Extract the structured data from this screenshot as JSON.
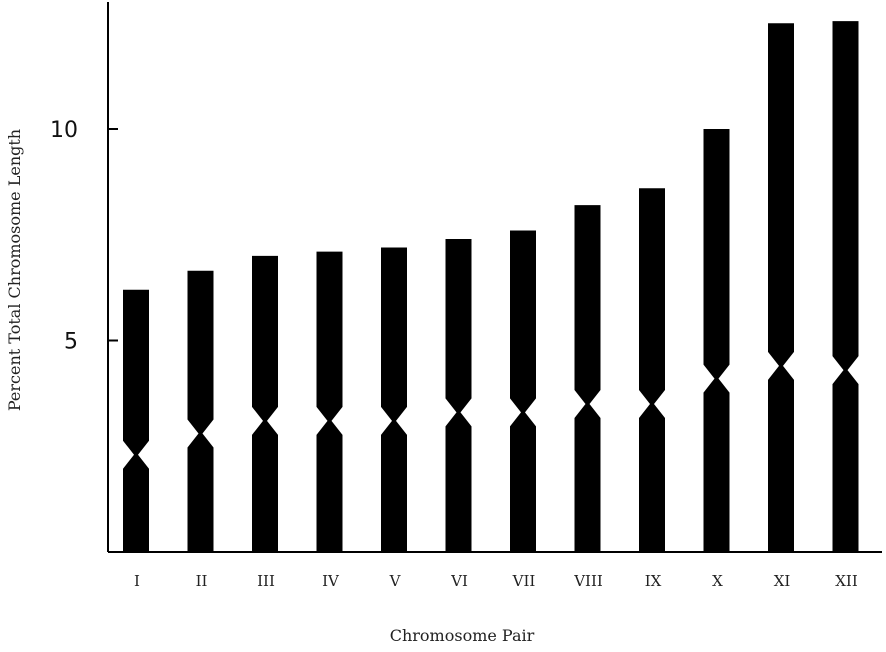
{
  "chart_data": {
    "type": "bar",
    "xlabel": "Chromosome Pair",
    "ylabel": "Percent Total Chromosome Length",
    "ylim": [
      0,
      12.6
    ],
    "yticks": [
      5,
      10
    ],
    "grid": false,
    "categories": [
      "I",
      "II",
      "III",
      "IV",
      "V",
      "VI",
      "VII",
      "VIII",
      "IX",
      "X",
      "XI",
      "XII"
    ],
    "values": [
      6.2,
      6.65,
      7.0,
      7.1,
      7.2,
      7.4,
      7.6,
      8.2,
      8.6,
      10.0,
      12.5,
      12.55
    ],
    "centromere_position": [
      2.3,
      2.8,
      3.1,
      3.1,
      3.1,
      3.3,
      3.3,
      3.5,
      3.5,
      4.1,
      4.4,
      4.3
    ]
  },
  "colors": {
    "bar": "#000000",
    "axis": "#000000",
    "text": "#222222"
  }
}
